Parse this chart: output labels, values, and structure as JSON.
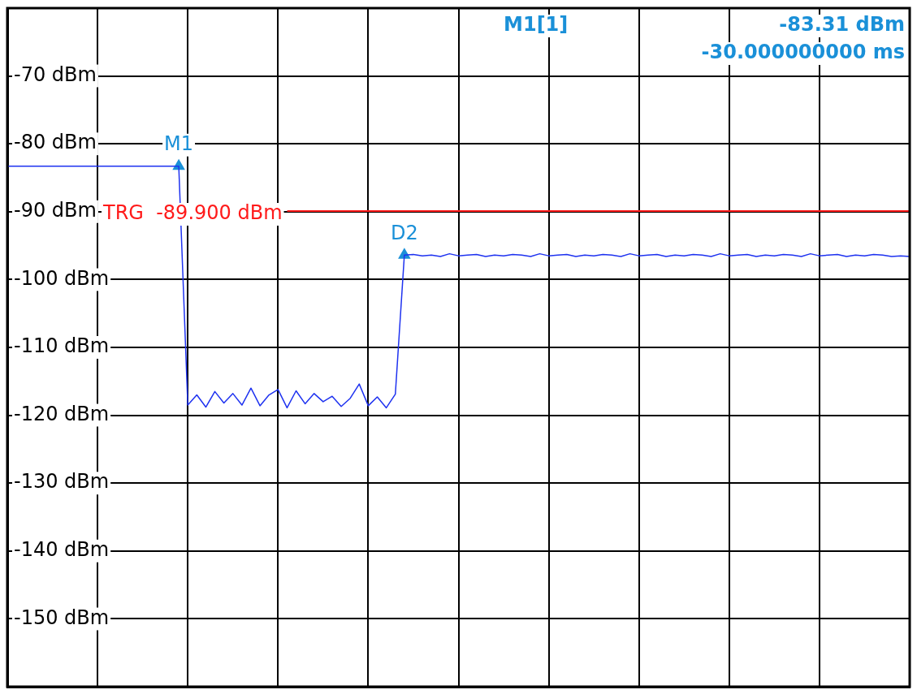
{
  "chart_data": {
    "type": "line",
    "categories": [
      null,
      null,
      null,
      null,
      null,
      null,
      null,
      null,
      null,
      null,
      null,
      null,
      null,
      null,
      null,
      null,
      null,
      null,
      null,
      null,
      null,
      null,
      null,
      null,
      null,
      null,
      null,
      null,
      null,
      null,
      null,
      null,
      null,
      null,
      null,
      null,
      null,
      null,
      null,
      null,
      null,
      null,
      null,
      null,
      null,
      null,
      null,
      null,
      null,
      null,
      null,
      null,
      null,
      null,
      null,
      null,
      null,
      null,
      null,
      null,
      null,
      null,
      null,
      null,
      null,
      null,
      null,
      null,
      null,
      null,
      null,
      null,
      null,
      null,
      null,
      null,
      null,
      null,
      null,
      null,
      null,
      null,
      null,
      null,
      null,
      null,
      null,
      null,
      null,
      null,
      null,
      null,
      null,
      null,
      null,
      null,
      null,
      null,
      null,
      null,
      null
    ],
    "ylim": [
      -160,
      -60
    ],
    "yticks": [
      {
        "value": -70,
        "label": "-70 dBm"
      },
      {
        "value": -80,
        "label": "-80 dBm"
      },
      {
        "value": -90,
        "label": "-90 dBm"
      },
      {
        "value": -100,
        "label": "-100 dBm"
      },
      {
        "value": -110,
        "label": "-110 dBm"
      },
      {
        "value": -120,
        "label": "-120 dBm"
      },
      {
        "value": -130,
        "label": "-130 dBm"
      },
      {
        "value": -140,
        "label": "-140 dBm"
      },
      {
        "value": -150,
        "label": "-150 dBm"
      }
    ],
    "tick_labels": "y",
    "grid": true,
    "series": [
      {
        "color": "#1e32f0",
        "values": [
          -83.3,
          -83.3,
          -83.3,
          -83.3,
          -83.3,
          -83.3,
          -83.3,
          -83.3,
          -83.3,
          -83.3,
          -83.3,
          -83.3,
          -83.3,
          -83.3,
          -83.3,
          -83.3,
          -83.3,
          -83.3,
          -83.3,
          -83.3,
          -118.5,
          -117,
          -118.8,
          -116.5,
          -118.2,
          -116.8,
          -118.5,
          -116,
          -118.6,
          -117,
          -116.2,
          -118.9,
          -116.4,
          -118.3,
          -116.8,
          -118,
          -117.2,
          -118.7,
          -117.5,
          -115.4,
          -118.6,
          -117.3,
          -118.9,
          -116.9,
          -96.4,
          -96.3,
          -96.5,
          -96.4,
          -96.6,
          -96.2,
          -96.5,
          -96.4,
          -96.3,
          -96.6,
          -96.4,
          -96.5,
          -96.3,
          -96.4,
          -96.6,
          -96.2,
          -96.5,
          -96.4,
          -96.3,
          -96.6,
          -96.4,
          -96.5,
          -96.3,
          -96.4,
          -96.6,
          -96.2,
          -96.5,
          -96.4,
          -96.3,
          -96.6,
          -96.4,
          -96.5,
          -96.3,
          -96.4,
          -96.6,
          -96.2,
          -96.5,
          -96.4,
          -96.3,
          -96.6,
          -96.4,
          -96.5,
          -96.3,
          -96.4,
          -96.6,
          -96.2,
          -96.5,
          -96.4,
          -96.3,
          -96.6,
          -96.4,
          -96.5,
          -96.3,
          -96.4,
          -96.6,
          -96.5,
          -96.6
        ]
      },
      {
        "name": "M1",
        "type": "scatter",
        "marker": "triangle",
        "color": "#1a90d8",
        "values": [
          null,
          null,
          null,
          null,
          null,
          null,
          null,
          null,
          null,
          null,
          null,
          null,
          null,
          null,
          null,
          null,
          null,
          null,
          null,
          -83.31,
          null,
          null,
          null,
          null,
          null,
          null,
          null,
          null,
          null,
          null,
          null,
          null,
          null,
          null,
          null,
          null,
          null,
          null,
          null,
          null,
          null,
          null,
          null,
          null,
          null,
          null,
          null,
          null,
          null,
          null,
          null,
          null,
          null,
          null,
          null,
          null,
          null,
          null,
          null,
          null,
          null,
          null,
          null,
          null,
          null,
          null,
          null,
          null,
          null,
          null,
          null,
          null,
          null,
          null,
          null,
          null,
          null,
          null,
          null,
          null,
          null,
          null,
          null,
          null,
          null,
          null,
          null,
          null,
          null,
          null,
          null,
          null,
          null,
          null,
          null,
          null,
          null,
          null,
          null,
          null,
          null
        ]
      },
      {
        "name": "D2",
        "type": "scatter",
        "marker": "triangle",
        "color": "#1a90d8",
        "values": [
          null,
          null,
          null,
          null,
          null,
          null,
          null,
          null,
          null,
          null,
          null,
          null,
          null,
          null,
          null,
          null,
          null,
          null,
          null,
          null,
          null,
          null,
          null,
          null,
          null,
          null,
          null,
          null,
          null,
          null,
          null,
          null,
          null,
          null,
          null,
          null,
          null,
          null,
          null,
          null,
          null,
          null,
          null,
          null,
          -96.4,
          null,
          null,
          null,
          null,
          null,
          null,
          null,
          null,
          null,
          null,
          null,
          null,
          null,
          null,
          null,
          null,
          null,
          null,
          null,
          null,
          null,
          null,
          null,
          null,
          null,
          null,
          null,
          null,
          null,
          null,
          null,
          null,
          null,
          null,
          null,
          null,
          null,
          null,
          null,
          null,
          null,
          null,
          null,
          null,
          null,
          null,
          null,
          null,
          null,
          null,
          null,
          null,
          null,
          null,
          null,
          null
        ]
      }
    ],
    "ref_lines": [
      {
        "axis": "y",
        "value": -89.9,
        "label": "TRG  -89.900 dBm",
        "color": "#ff1a1a"
      }
    ],
    "annotations": [
      "M1[1]",
      "-83.31 dBm",
      "-30.000000000 ms"
    ]
  }
}
